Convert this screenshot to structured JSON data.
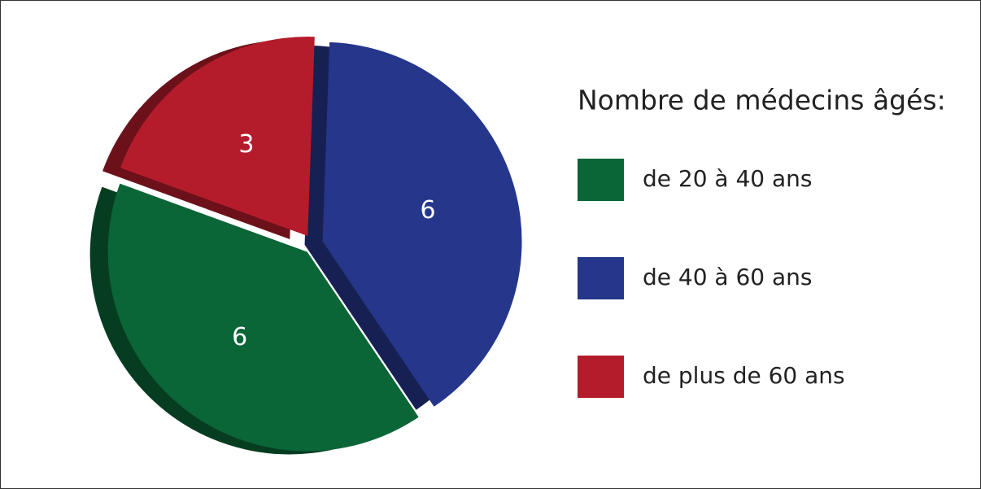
{
  "chart_data": {
    "type": "pie",
    "legend_title": "Nombre de médecins âgés:",
    "categories": [
      "de 20 à 40 ans",
      "de 40 à 60 ans",
      "de plus de 60 ans"
    ],
    "values": [
      6,
      6,
      3
    ],
    "colors": [
      "#0a6537",
      "#25368b",
      "#b41c2b"
    ],
    "legend": "right"
  }
}
